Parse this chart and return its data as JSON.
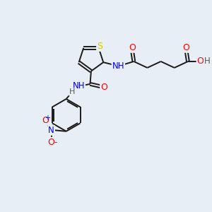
{
  "background_color": "#e8eef5",
  "bond_color": "#1a1a1a",
  "atom_colors": {
    "S": "#cccc00",
    "N": "#0000ff",
    "O": "#ff0000",
    "H": "#555555",
    "C": "#1a1a1a"
  },
  "font_size": 8.5,
  "lw": 1.4
}
